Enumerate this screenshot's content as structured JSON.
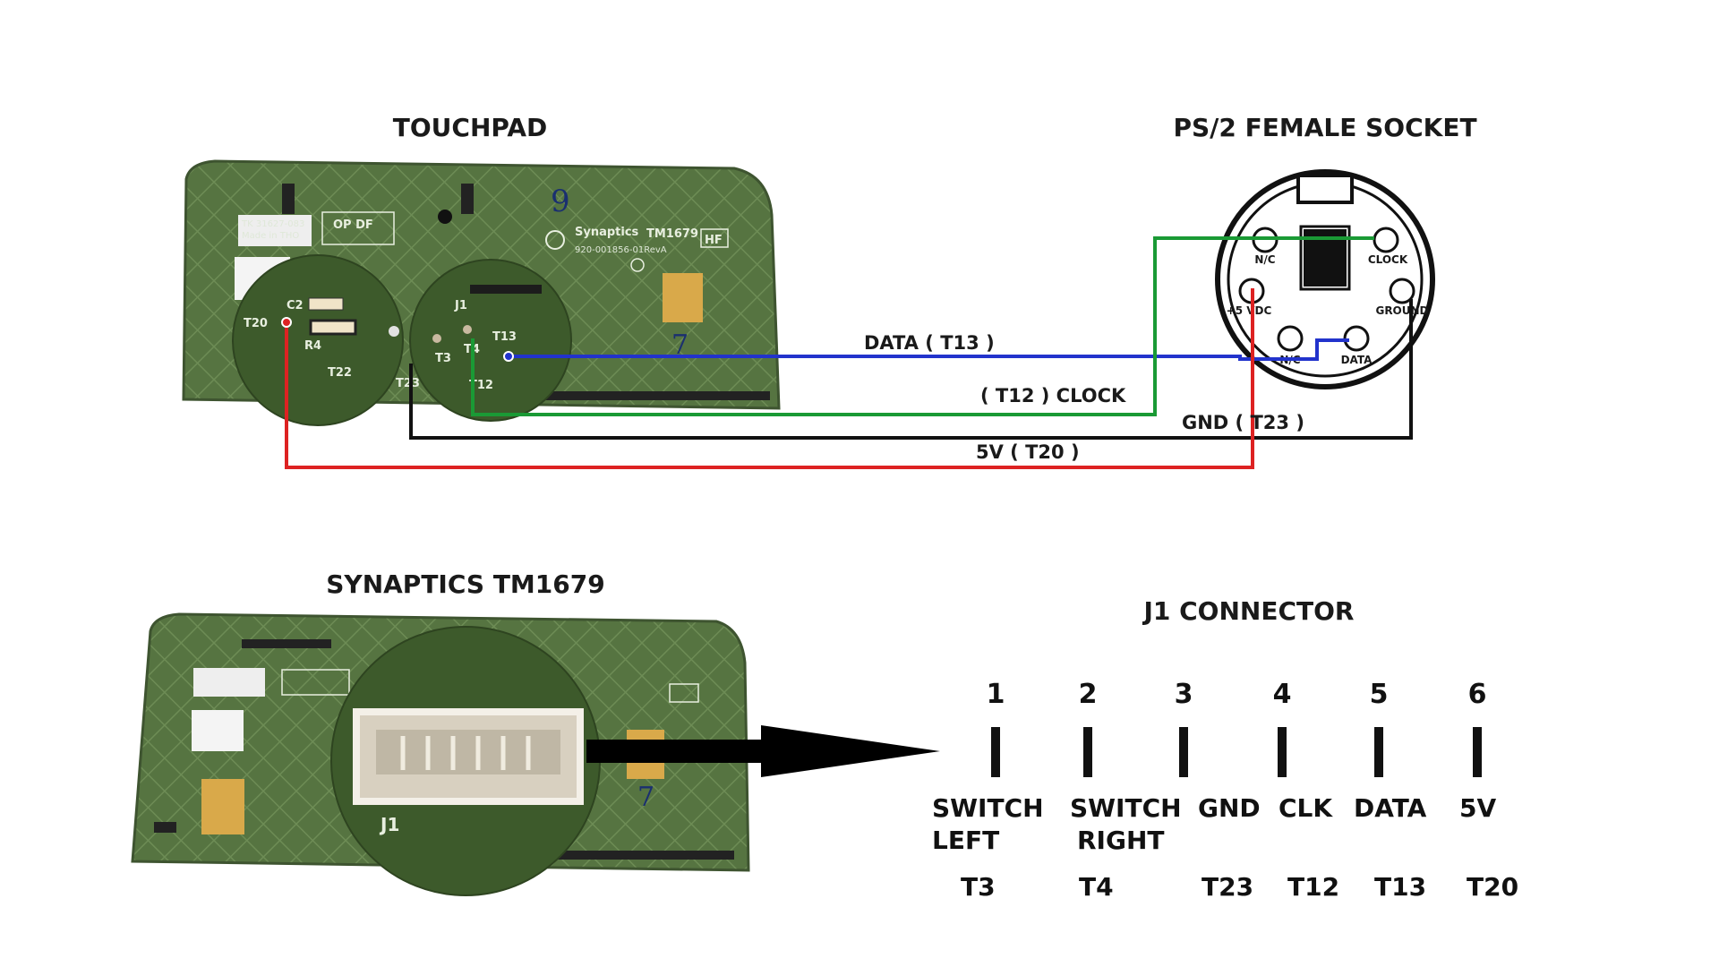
{
  "headers": {
    "touchpad": "TOUCHPAD",
    "ps2": "PS/2 FEMALE SOCKET",
    "synaptics": "SYNAPTICS TM1679",
    "j1": "J1 CONNECTOR"
  },
  "wires": {
    "data": "DATA ( T13 )",
    "clock": "( T12 ) CLOCK",
    "gnd": "GND ( T23 )",
    "v5": "5V ( T20 )"
  },
  "colors": {
    "data": "#2233cc",
    "clock": "#1a9a35",
    "gnd": "#111111",
    "v5": "#dd2222",
    "pcb": "#4f6b3a"
  },
  "ps2_pins": {
    "nc_top": "N/C",
    "clock": "CLOCK",
    "vdc": "+5 VDC",
    "ground": "GROUND",
    "nc_bottom": "N/C",
    "data": "DATA"
  },
  "board": {
    "brand": "Synaptics",
    "model": "TM1679",
    "part": "920-001856-01RevA",
    "hf": "HF",
    "opdf": "OP DF",
    "t3": "T3",
    "t4": "T4",
    "t13": "T13",
    "t12": "T12",
    "t22": "T22",
    "t20": "T20",
    "t23": "T23",
    "c2": "C2",
    "r4": "R4",
    "j1": "J1"
  },
  "j1_pins": [
    {
      "num": "1",
      "line1": "SWITCH",
      "line2": "LEFT",
      "t": "T3"
    },
    {
      "num": "2",
      "line1": "SWITCH",
      "line2": "RIGHT",
      "t": "T4"
    },
    {
      "num": "3",
      "line1": "GND",
      "line2": "",
      "t": "T23"
    },
    {
      "num": "4",
      "line1": "CLK",
      "line2": "",
      "t": "T12"
    },
    {
      "num": "5",
      "line1": "DATA",
      "line2": "",
      "t": "T13"
    },
    {
      "num": "6",
      "line1": "5V",
      "line2": "",
      "t": "T20"
    }
  ]
}
